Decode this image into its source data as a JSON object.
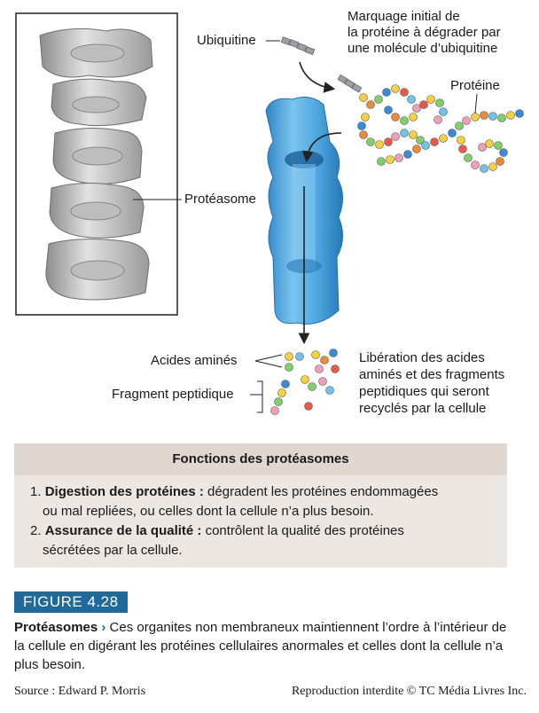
{
  "labels": {
    "marquage": [
      "Marquage initial de",
      "la protéine à dégrader par",
      "une molécule d’ubiquitine"
    ],
    "ubiquitine": "Ubiquitine",
    "proteine": "Protéine",
    "proteasome": "Protéasome",
    "acides_amines": "Acides aminés",
    "fragment_peptidique": "Fragment peptidique",
    "liberation": [
      "Libération des acides",
      "aminés et des fragments",
      "peptidiques qui seront",
      "recyclés par la cellule"
    ]
  },
  "functions": {
    "title": "Fonctions des protéasomes",
    "items": [
      {
        "num": "1.",
        "bold": "Digestion des protéines :",
        "text": " dégradent les protéines endommagées",
        "line2": "ou mal repliées, ou celles dont la cellule n’a plus besoin."
      },
      {
        "num": "2.",
        "bold": "Assurance de la qualité :",
        "text": " contrôlent la qualité des protéines",
        "line2": "sécrétées par la cellule."
      }
    ]
  },
  "figure": {
    "tag": "FIGURE 4.28",
    "title": "Protéasomes",
    "chevron": "›",
    "caption": " Ces organites non membraneux maintiennent l’ordre à l’intérieur de la cellule en digérant les protéines cellulaires anormales et celles dont la cellule n’a plus besoin."
  },
  "footer": {
    "source": "Source : Edward P. Morris",
    "rights": "Reproduction interdite © TC Média Livres Inc."
  },
  "colors": {
    "proteasome_blue": "#5aaee0",
    "figure_tag": "#1f6a9a",
    "box_bg": "#ece7e3",
    "box_head": "#e0d7d0"
  }
}
